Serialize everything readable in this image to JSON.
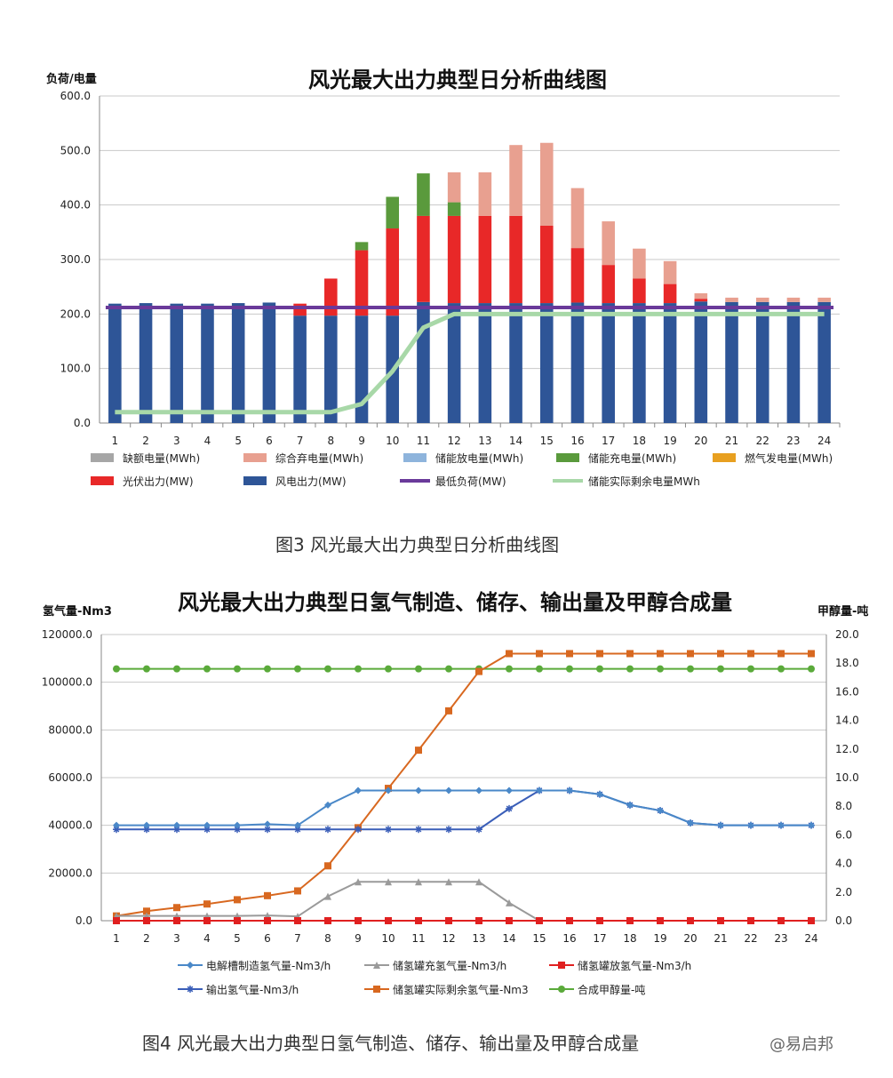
{
  "watermark": "@易启邦",
  "charts": [
    {
      "caption": "图3  风光最大出力典型日分析曲线图",
      "chart_data": {
        "type": "bar",
        "title": "风光最大出力典型日分析曲线图",
        "ylabel": "负荷/电量",
        "xlabel": "",
        "ylim": [
          0,
          600
        ],
        "y_ticks": [
          "0.0",
          "100.0",
          "200.0",
          "300.0",
          "400.0",
          "500.0",
          "600.0"
        ],
        "categories": [
          "1",
          "2",
          "3",
          "4",
          "5",
          "6",
          "7",
          "8",
          "9",
          "10",
          "11",
          "12",
          "13",
          "14",
          "15",
          "16",
          "17",
          "18",
          "19",
          "20",
          "21",
          "22",
          "23",
          "24"
        ],
        "stacked": true,
        "grid": true,
        "legend_position": "bottom",
        "series": [
          {
            "name": "缺额电量(MWh)",
            "color": "#a6a6a6",
            "kind": "bar",
            "values": [
              0,
              0,
              0,
              0,
              0,
              0,
              0,
              0,
              0,
              0,
              0,
              0,
              0,
              0,
              0,
              0,
              0,
              0,
              0,
              0,
              0,
              0,
              0,
              0
            ]
          },
          {
            "name": "综合弃电量(MWh)",
            "color": "#e8a090",
            "kind": "bar",
            "values": [
              0,
              0,
              0,
              0,
              0,
              0,
              0,
              0,
              0,
              0,
              0,
              55,
              80,
              130,
              152,
              110,
              80,
              55,
              42,
              10,
              8,
              8,
              8,
              8
            ]
          },
          {
            "name": "储能放电量(MWh)",
            "color": "#8eb4dc",
            "kind": "bar",
            "values": [
              0,
              0,
              0,
              0,
              0,
              0,
              0,
              0,
              0,
              0,
              0,
              0,
              0,
              0,
              0,
              0,
              0,
              0,
              0,
              0,
              0,
              0,
              0,
              0
            ]
          },
          {
            "name": "储能充电量(MWh)",
            "color": "#5a9a3c",
            "kind": "bar",
            "values": [
              0,
              0,
              0,
              0,
              0,
              0,
              0,
              0,
              15,
              58,
              78,
              25,
              0,
              0,
              0,
              0,
              0,
              0,
              0,
              0,
              0,
              0,
              0,
              0
            ]
          },
          {
            "name": "燃气发电量(MWh)",
            "color": "#e8a020",
            "kind": "bar",
            "values": [
              0,
              0,
              0,
              0,
              0,
              0,
              0,
              0,
              0,
              0,
              0,
              0,
              0,
              0,
              0,
              0,
              0,
              0,
              0,
              0,
              0,
              0,
              0,
              0
            ]
          },
          {
            "name": "光伏出力(MW)",
            "color": "#e82828",
            "kind": "bar",
            "values": [
              0,
              0,
              0,
              0,
              0,
              0,
              22,
              68,
              120,
              160,
              158,
              160,
              160,
              160,
              142,
              100,
              70,
              45,
              35,
              5,
              0,
              0,
              0,
              0
            ]
          },
          {
            "name": "风电出力(MW)",
            "color": "#2e5597",
            "kind": "bar",
            "values": [
              219,
              220,
              219,
              219,
              220,
              221,
              197,
              197,
              197,
              197,
              222,
              220,
              220,
              220,
              220,
              221,
              220,
              220,
              220,
              223,
              222,
              222,
              222,
              222
            ]
          },
          {
            "name": "最低负荷(MW)",
            "color": "#6a3a9a",
            "kind": "line",
            "values": [
              212,
              212,
              212,
              212,
              212,
              212,
              212,
              212,
              212,
              212,
              212,
              212,
              212,
              212,
              212,
              212,
              212,
              212,
              212,
              212,
              212,
              212,
              212,
              212
            ]
          },
          {
            "name": "储能实际剩余电量MWh",
            "color": "#a8d8a8",
            "kind": "line",
            "values": [
              20,
              20,
              20,
              20,
              20,
              20,
              20,
              20,
              35,
              95,
              175,
              200,
              200,
              200,
              200,
              200,
              200,
              200,
              200,
              200,
              200,
              200,
              200,
              200
            ]
          }
        ],
        "legend_order": [
          "缺额电量(MWh)",
          "综合弃电量(MWh)",
          "储能放电量(MWh)",
          "储能充电量(MWh)",
          "燃气发电量(MWh)",
          "光伏出力(MW)",
          "风电出力(MW)",
          "最低负荷(MW)",
          "储能实际剩余电量MWh"
        ]
      }
    },
    {
      "caption": "图4  风光最大出力典型日氢气制造、储存、输出量及甲醇合成量",
      "chart_data": {
        "type": "line",
        "title": "风光最大出力典型日氢气制造、储存、输出量及甲醇合成量",
        "ylabel": "氢气量-Nm3",
        "y2label": "甲醇量-吨",
        "xlabel": "",
        "ylim": [
          0,
          120000
        ],
        "y2lim": [
          0,
          20
        ],
        "y_ticks": [
          "0.0",
          "20000.0",
          "40000.0",
          "60000.0",
          "80000.0",
          "100000.0",
          "120000.0"
        ],
        "y2_ticks": [
          "0.0",
          "2.0",
          "4.0",
          "6.0",
          "8.0",
          "10.0",
          "12.0",
          "14.0",
          "16.0",
          "18.0",
          "20.0"
        ],
        "categories": [
          "1",
          "2",
          "3",
          "4",
          "5",
          "6",
          "7",
          "8",
          "9",
          "10",
          "11",
          "12",
          "13",
          "14",
          "15",
          "16",
          "17",
          "18",
          "19",
          "20",
          "21",
          "22",
          "23",
          "24"
        ],
        "grid": true,
        "legend_position": "bottom",
        "series": [
          {
            "name": "电解槽制造氢气量-Nm3/h",
            "color": "#4a88c8",
            "marker": "diamond",
            "axis": "left",
            "values": [
              40000,
              40000,
              40000,
              40000,
              40000,
              40500,
              40000,
              48500,
              54600,
              54600,
              54600,
              54600,
              54600,
              54600,
              54600,
              54600,
              53000,
              48500,
              46200,
              41000,
              40000,
              40000,
              40000,
              40000
            ]
          },
          {
            "name": "储氢罐充氢气量-Nm3/h",
            "color": "#9a9a9a",
            "marker": "triangle",
            "axis": "left",
            "values": [
              2000,
              2000,
              2000,
              2000,
              2000,
              2200,
              1800,
              10200,
              16300,
              16300,
              16300,
              16300,
              16300,
              7500,
              0,
              0,
              0,
              0,
              0,
              0,
              0,
              0,
              0,
              0
            ]
          },
          {
            "name": "储氢罐放氢气量-Nm3/h",
            "color": "#e02020",
            "marker": "square",
            "axis": "left",
            "values": [
              0,
              0,
              0,
              0,
              0,
              0,
              0,
              0,
              0,
              0,
              0,
              0,
              0,
              0,
              0,
              0,
              0,
              0,
              0,
              0,
              0,
              0,
              0,
              0
            ]
          },
          {
            "name": "输出氢气量-Nm3/h",
            "color": "#3a5eb8",
            "marker": "star",
            "axis": "left",
            "values": [
              38300,
              38300,
              38300,
              38300,
              38300,
              38300,
              38300,
              38300,
              38300,
              38300,
              38300,
              38300,
              38300,
              47000,
              54600,
              54600,
              53000,
              48500,
              46200,
              41000,
              40000,
              40000,
              40000,
              40000
            ]
          },
          {
            "name": "储氢罐实际剩余氢气量-Nm3",
            "color": "#d86820",
            "marker": "square",
            "axis": "left",
            "values": [
              2000,
              4000,
              5500,
              7000,
              8800,
              10500,
              12500,
              23000,
              39000,
              55500,
              71500,
              88000,
              104500,
              112000,
              112000,
              112000,
              112000,
              112000,
              112000,
              112000,
              112000,
              112000,
              112000,
              112000
            ]
          },
          {
            "name": "合成甲醇量-吨",
            "color": "#5aaa3a",
            "marker": "circle",
            "axis": "right",
            "values": [
              17.6,
              17.6,
              17.6,
              17.6,
              17.6,
              17.6,
              17.6,
              17.6,
              17.6,
              17.6,
              17.6,
              17.6,
              17.6,
              17.6,
              17.6,
              17.6,
              17.6,
              17.6,
              17.6,
              17.6,
              17.6,
              17.6,
              17.6,
              17.6
            ]
          }
        ]
      }
    }
  ]
}
